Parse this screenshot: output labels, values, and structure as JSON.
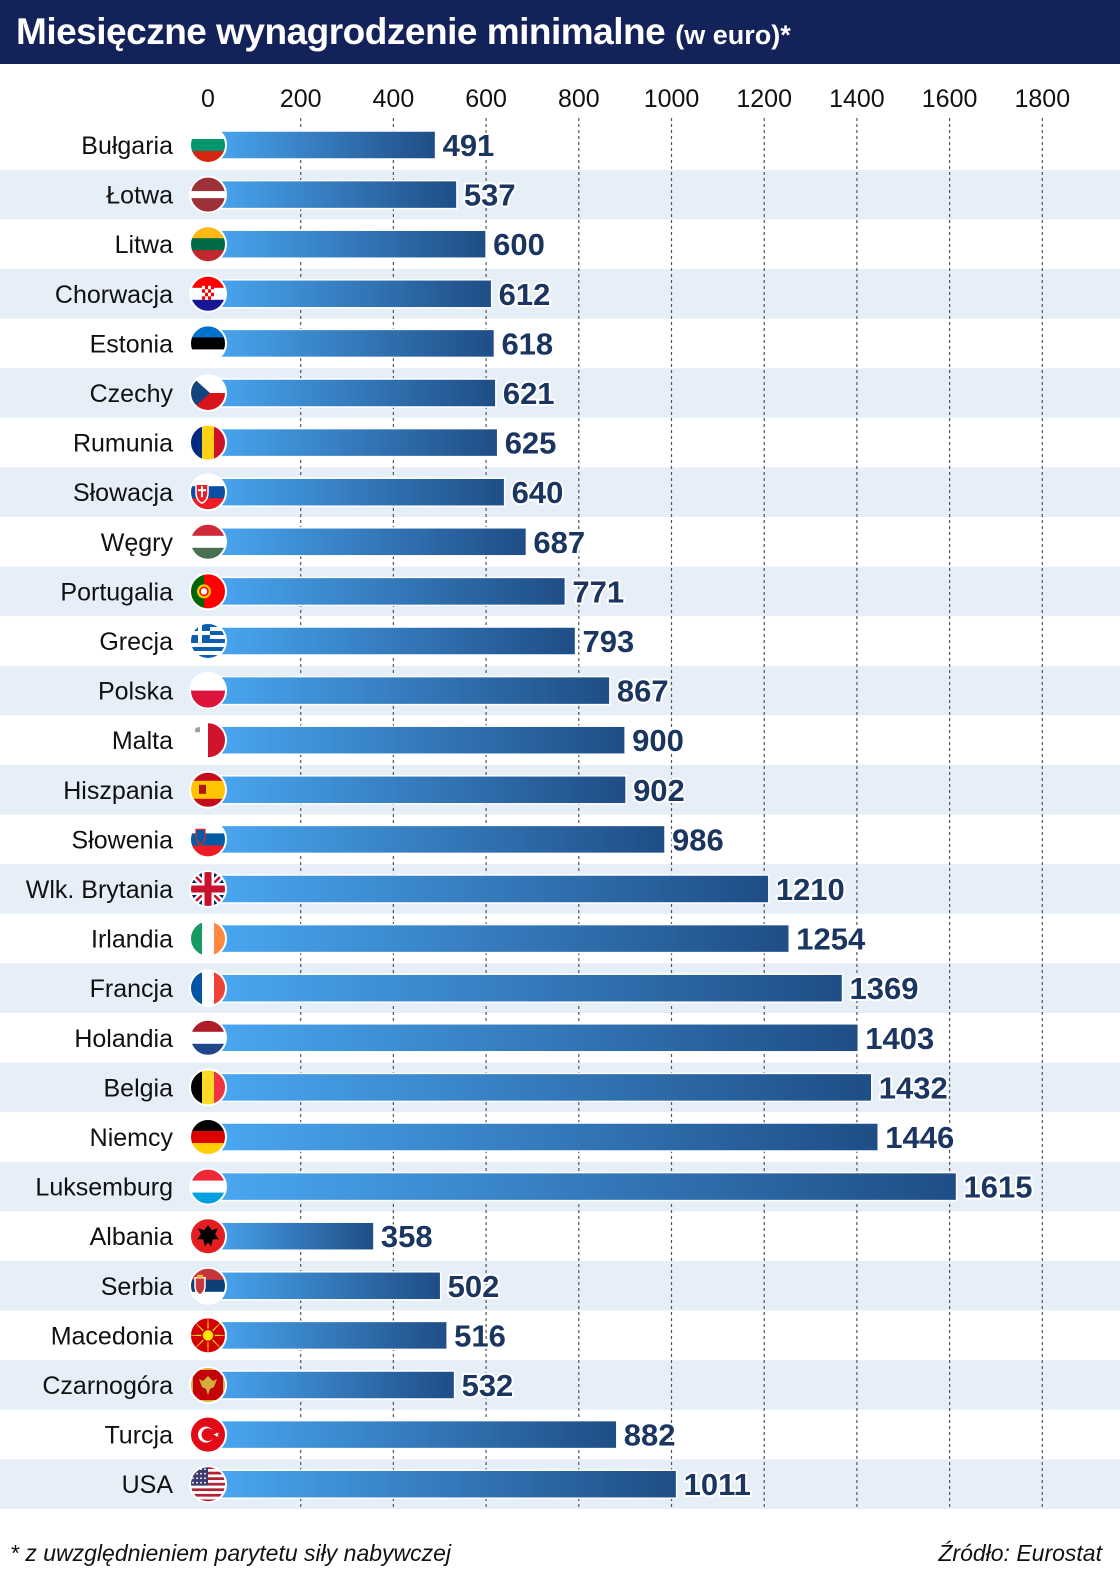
{
  "header": {
    "title": "Miesięczne wynagrodzenie minimalne",
    "subtitle": "(w euro)*"
  },
  "footer": {
    "note": "* z uwzględnieniem parytetu siły nabywczej",
    "source": "Źródło: Eurostat"
  },
  "colors": {
    "title_bg": "#14225a",
    "bar_light": "#4aa8f2",
    "bar_dark": "#1f4d86",
    "label_text": "#1a3560",
    "stripe": "#e6eef8"
  },
  "chart_data": {
    "type": "bar",
    "orientation": "horizontal",
    "title": "Miesięczne wynagrodzenie minimalne",
    "xlim": [
      0,
      1800
    ],
    "xticks": [
      0,
      200,
      400,
      600,
      800,
      1000,
      1200,
      1400,
      1600,
      1800
    ],
    "grid": "vertical dashed",
    "categories": [
      "Bułgaria",
      "Łotwa",
      "Litwa",
      "Chorwacja",
      "Estonia",
      "Czechy",
      "Rumunia",
      "Słowacja",
      "Węgry",
      "Portugalia",
      "Grecja",
      "Polska",
      "Malta",
      "Hiszpania",
      "Słowenia",
      "Wlk. Brytania",
      "Irlandia",
      "Francja",
      "Holandia",
      "Belgia",
      "Niemcy",
      "Luksemburg",
      "Albania",
      "Serbia",
      "Macedonia",
      "Czarnogóra",
      "Turcja",
      "USA"
    ],
    "values": [
      491,
      537,
      600,
      612,
      618,
      621,
      625,
      640,
      687,
      771,
      793,
      867,
      900,
      902,
      986,
      1210,
      1254,
      1369,
      1403,
      1432,
      1446,
      1615,
      358,
      502,
      516,
      532,
      882,
      1011
    ],
    "flags": [
      "bulgaria-flag-icon",
      "latvia-flag-icon",
      "lithuania-flag-icon",
      "croatia-flag-icon",
      "estonia-flag-icon",
      "czechia-flag-icon",
      "romania-flag-icon",
      "slovakia-flag-icon",
      "hungary-flag-icon",
      "portugal-flag-icon",
      "greece-flag-icon",
      "poland-flag-icon",
      "malta-flag-icon",
      "spain-flag-icon",
      "slovenia-flag-icon",
      "uk-flag-icon",
      "ireland-flag-icon",
      "france-flag-icon",
      "netherlands-flag-icon",
      "belgium-flag-icon",
      "germany-flag-icon",
      "luxembourg-flag-icon",
      "albania-flag-icon",
      "serbia-flag-icon",
      "macedonia-flag-icon",
      "montenegro-flag-icon",
      "turkey-flag-icon",
      "usa-flag-icon"
    ]
  }
}
